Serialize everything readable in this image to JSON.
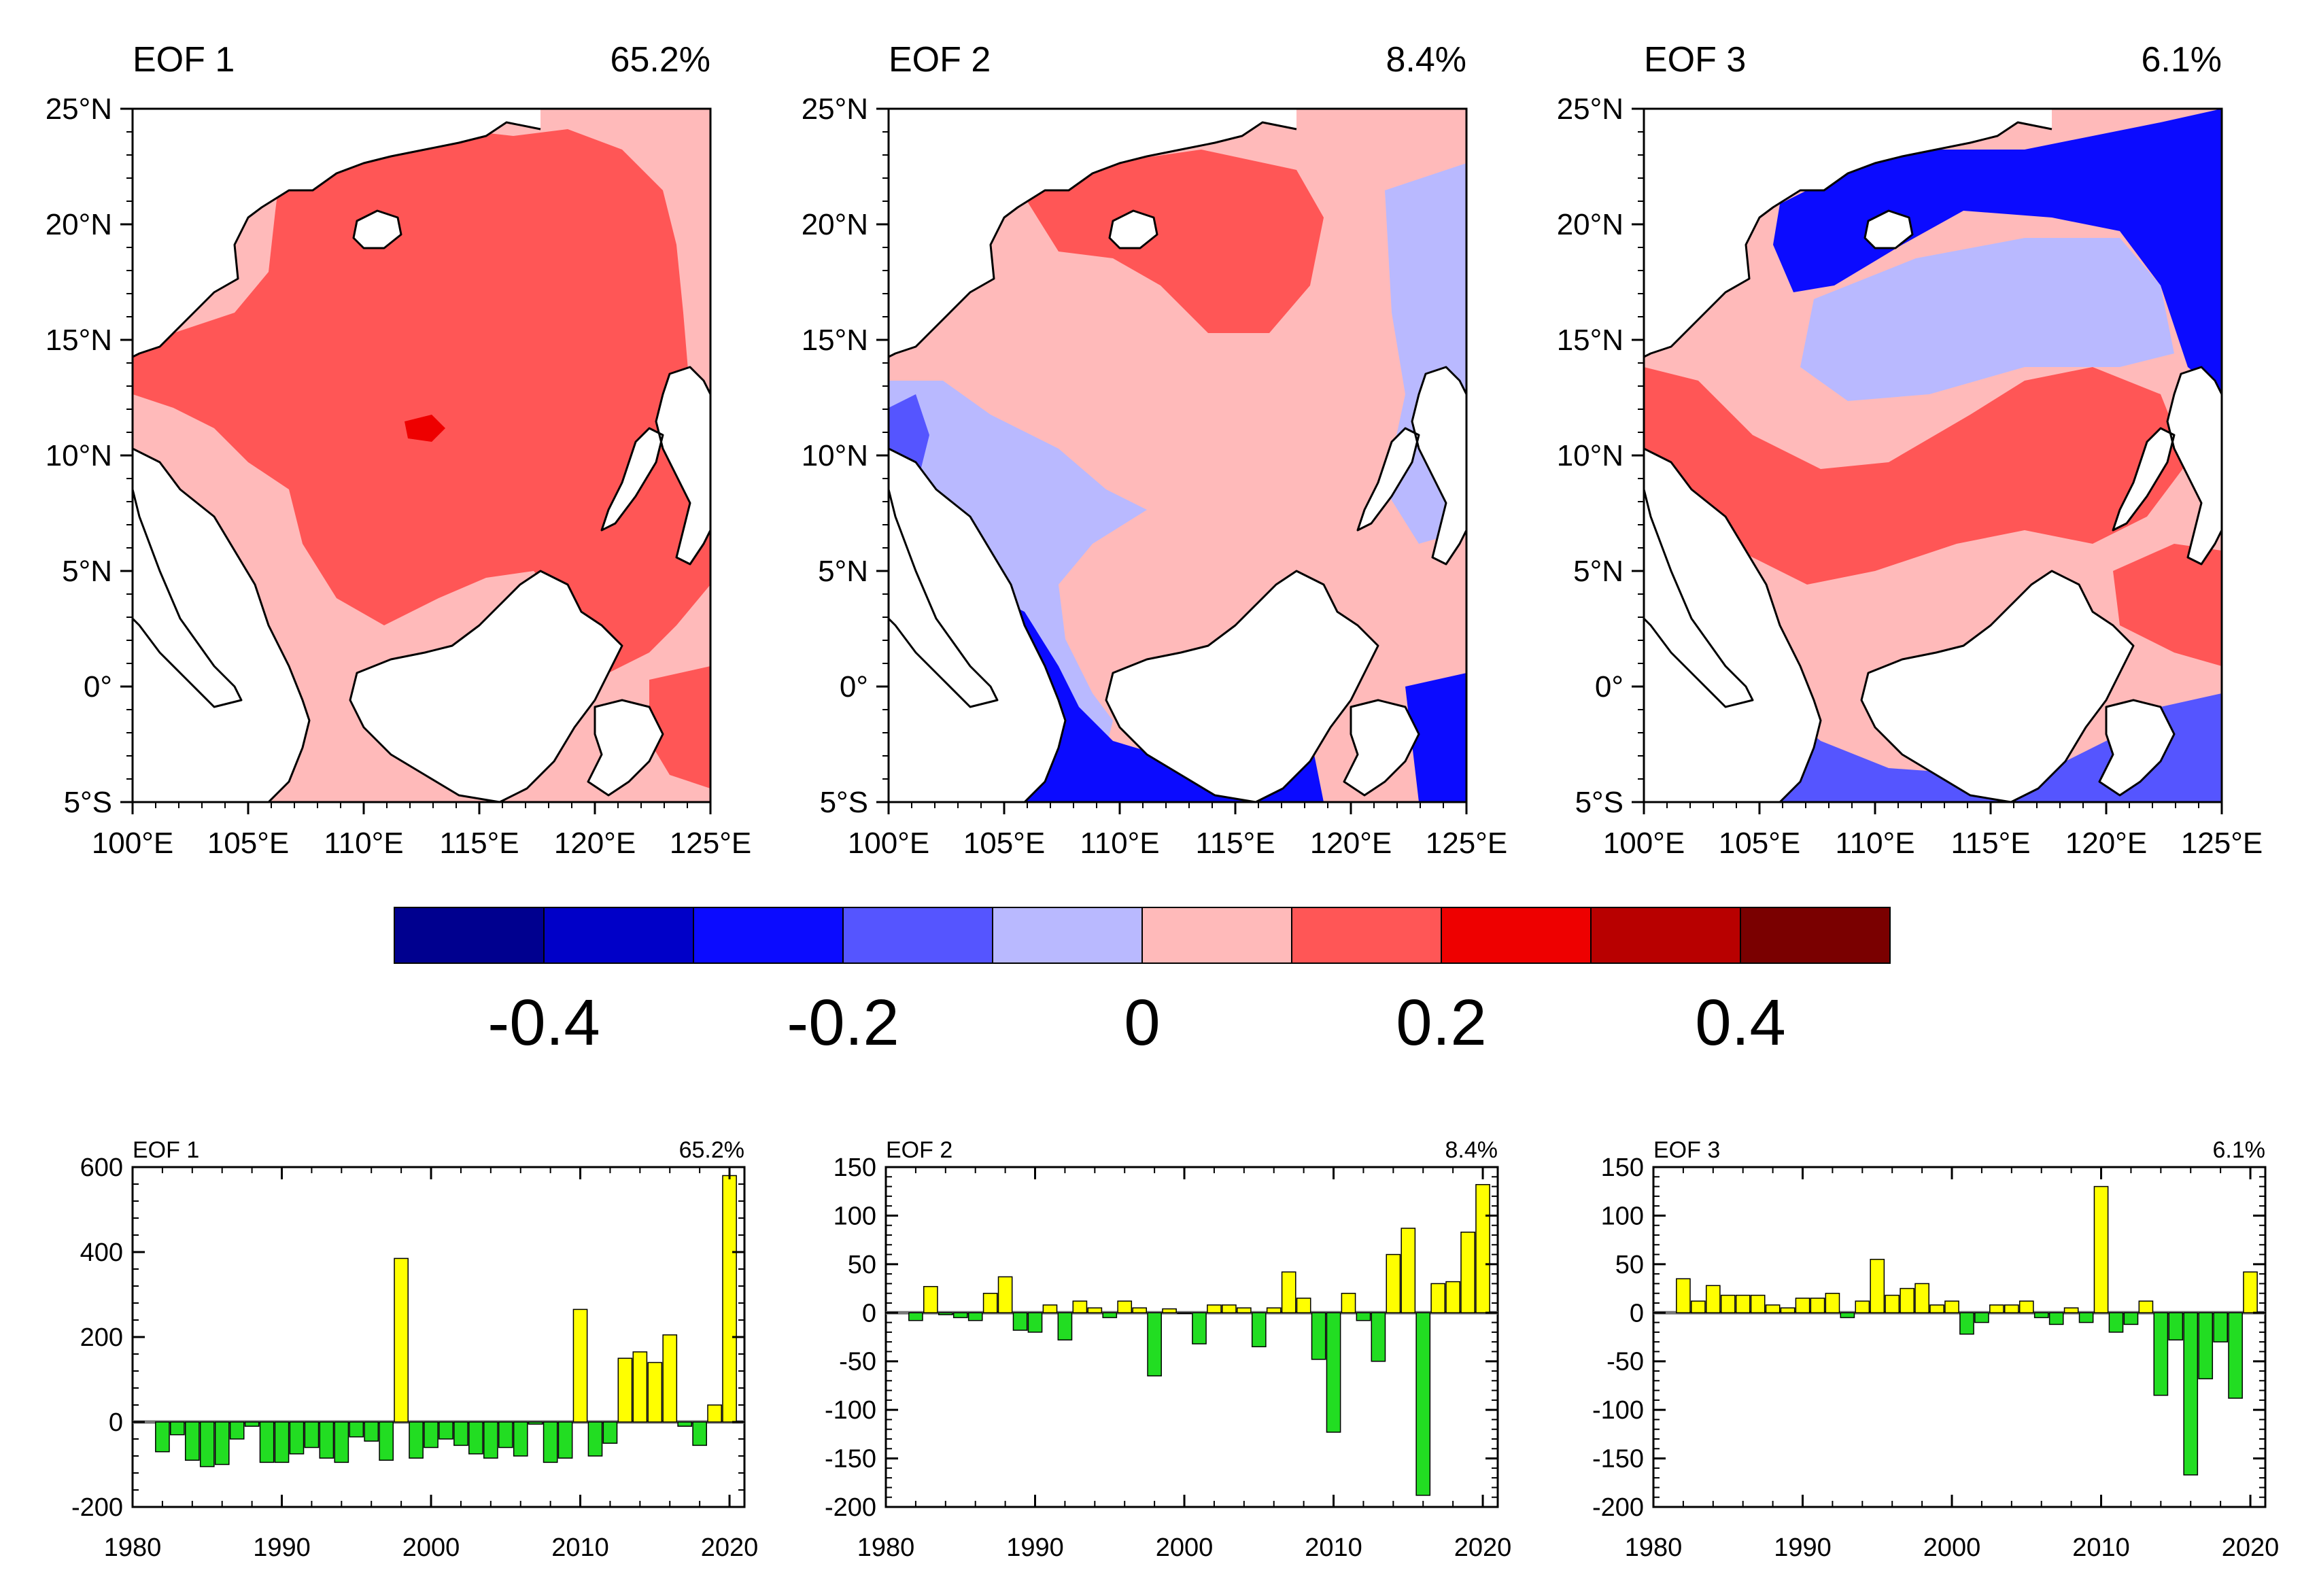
{
  "colors": {
    "land": "#ffffff",
    "bar_positive": "#ffff00",
    "bar_negative": "#22dd22",
    "bar_outline": "#000000",
    "coast": "#000000"
  },
  "chart_data": [
    {
      "type": "heatmap",
      "id": "map1",
      "label": "EOF 1",
      "variance": "65.2%",
      "region": "South China Sea",
      "lon_ticks": [
        "100°E",
        "105°E",
        "110°E",
        "115°E",
        "120°E",
        "125°E"
      ],
      "lat_ticks": [
        "25°N",
        "20°N",
        "15°N",
        "10°N",
        "5°N",
        "0°",
        "5°S"
      ],
      "lon_range": [
        100,
        125
      ],
      "lat_range": [
        -5,
        25
      ],
      "pattern": "mostly positive (0.1–0.2) across basin, pale pink (0–0.1) near Borneo and Gulf of Thailand"
    },
    {
      "type": "heatmap",
      "id": "map2",
      "label": "EOF 2",
      "variance": "8.4%",
      "region": "South China Sea",
      "lon_ticks": [
        "100°E",
        "105°E",
        "110°E",
        "115°E",
        "120°E",
        "125°E"
      ],
      "lat_ticks": [
        "25°N",
        "20°N",
        "15°N",
        "10°N",
        "5°N",
        "0°",
        "5°S"
      ],
      "lon_range": [
        100,
        125
      ],
      "lat_range": [
        -5,
        25
      ],
      "pattern": "positive in north, pale blue in central/west, strong negative (-0.2 to -0.3) in Java Sea"
    },
    {
      "type": "heatmap",
      "id": "map3",
      "label": "EOF 3",
      "variance": "6.1%",
      "region": "South China Sea",
      "lon_ticks": [
        "100°E",
        "105°E",
        "110°E",
        "115°E",
        "120°E",
        "125°E"
      ],
      "lat_ticks": [
        "25°N",
        "20°N",
        "15°N",
        "10°N",
        "5°N",
        "0°",
        "5°S"
      ],
      "lon_range": [
        100,
        125
      ],
      "lat_range": [
        -5,
        25
      ],
      "pattern": "negative (-0.2) in north shelf and south, positive band through central basin"
    },
    {
      "type": "colorbar",
      "id": "colorbar",
      "levels": [
        -0.5,
        -0.4,
        -0.3,
        -0.2,
        -0.1,
        0,
        0.1,
        0.2,
        0.3,
        0.4,
        0.5
      ],
      "colors": [
        "#00008f",
        "#0000c8",
        "#0b0bff",
        "#5555ff",
        "#b9b9ff",
        "#ffbaba",
        "#ff5656",
        "#ee0000",
        "#b80000",
        "#7a0000"
      ],
      "tick_labels": [
        "-0.4",
        "-0.2",
        "0",
        "0.2",
        "0.4"
      ]
    },
    {
      "type": "bar",
      "id": "ts1",
      "label": "EOF 1",
      "variance": "65.2%",
      "x": [
        1982,
        1983,
        1984,
        1985,
        1986,
        1987,
        1988,
        1989,
        1990,
        1991,
        1992,
        1993,
        1994,
        1995,
        1996,
        1997,
        1998,
        1999,
        2000,
        2001,
        2002,
        2003,
        2004,
        2005,
        2006,
        2007,
        2008,
        2009,
        2010,
        2011,
        2012,
        2013,
        2014,
        2015,
        2016,
        2017,
        2018,
        2019,
        2020
      ],
      "values": [
        -70,
        -30,
        -90,
        -105,
        -100,
        -40,
        -10,
        -95,
        -95,
        -75,
        -60,
        -85,
        -95,
        -35,
        -45,
        -90,
        385,
        -85,
        -60,
        -40,
        -55,
        -75,
        -85,
        -60,
        -80,
        -5,
        -95,
        -85,
        265,
        -80,
        -50,
        150,
        165,
        140,
        205,
        -10,
        -55,
        40,
        580
      ],
      "xlim": [
        1980,
        2021
      ],
      "ylim": [
        -200,
        600
      ],
      "x_ticks": [
        "1980",
        "1990",
        "2000",
        "2010",
        "2020"
      ],
      "y_ticks": [
        "600",
        "400",
        "200",
        "0",
        "-200"
      ]
    },
    {
      "type": "bar",
      "id": "ts2",
      "label": "EOF 2",
      "variance": "8.4%",
      "x": [
        1982,
        1983,
        1984,
        1985,
        1986,
        1987,
        1988,
        1989,
        1990,
        1991,
        1992,
        1993,
        1994,
        1995,
        1996,
        1997,
        1998,
        1999,
        2000,
        2001,
        2002,
        2003,
        2004,
        2005,
        2006,
        2007,
        2008,
        2009,
        2010,
        2011,
        2012,
        2013,
        2014,
        2015,
        2016,
        2017,
        2018,
        2019,
        2020
      ],
      "values": [
        -8,
        27,
        -2,
        -5,
        -8,
        20,
        37,
        -18,
        -20,
        8,
        -28,
        12,
        5,
        -5,
        12,
        5,
        -65,
        4,
        0,
        -32,
        8,
        8,
        5,
        -35,
        5,
        42,
        15,
        -48,
        -123,
        20,
        -8,
        -50,
        60,
        87,
        -188,
        30,
        32,
        83,
        132
      ],
      "xlim": [
        1980,
        2021
      ],
      "ylim": [
        -200,
        150
      ],
      "x_ticks": [
        "1980",
        "1990",
        "2000",
        "2010",
        "2020"
      ],
      "y_ticks": [
        "150",
        "100",
        "50",
        "0",
        "-50",
        "-100",
        "-150",
        "-200"
      ]
    },
    {
      "type": "bar",
      "id": "ts3",
      "label": "EOF 3",
      "variance": "6.1%",
      "x": [
        1982,
        1983,
        1984,
        1985,
        1986,
        1987,
        1988,
        1989,
        1990,
        1991,
        1992,
        1993,
        1994,
        1995,
        1996,
        1997,
        1998,
        1999,
        2000,
        2001,
        2002,
        2003,
        2004,
        2005,
        2006,
        2007,
        2008,
        2009,
        2010,
        2011,
        2012,
        2013,
        2014,
        2015,
        2016,
        2017,
        2018,
        2019,
        2020
      ],
      "values": [
        35,
        12,
        28,
        18,
        18,
        18,
        8,
        5,
        15,
        15,
        20,
        -5,
        12,
        55,
        18,
        25,
        30,
        8,
        12,
        -22,
        -10,
        8,
        8,
        12,
        -5,
        -12,
        5,
        -10,
        130,
        -20,
        -12,
        12,
        -85,
        -28,
        -167,
        -68,
        -30,
        -88,
        42
      ],
      "xlim": [
        1980,
        2021
      ],
      "ylim": [
        -200,
        150
      ],
      "x_ticks": [
        "1980",
        "1990",
        "2000",
        "2010",
        "2020"
      ],
      "y_ticks": [
        "150",
        "100",
        "50",
        "0",
        "-50",
        "-100",
        "-150",
        "-200"
      ]
    }
  ]
}
